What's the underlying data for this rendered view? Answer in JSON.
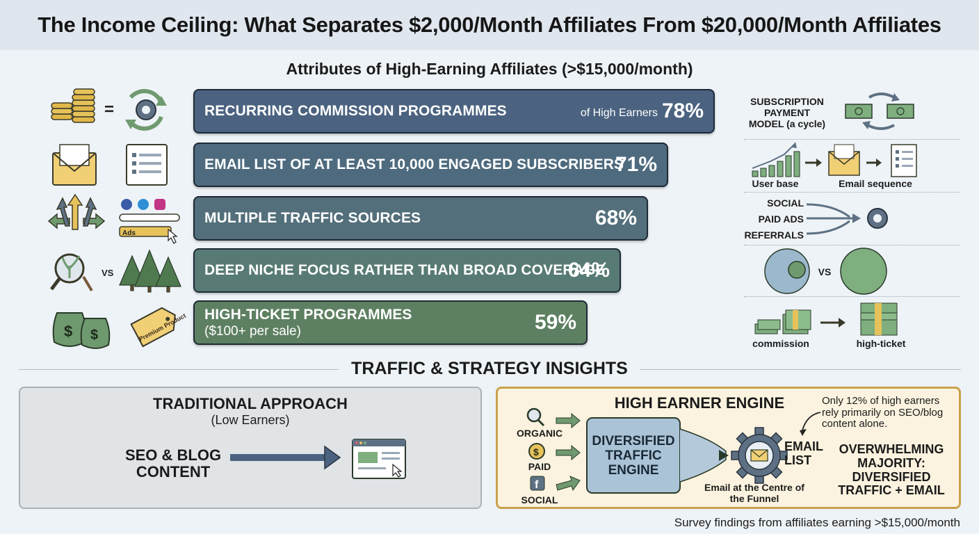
{
  "title": "The Income Ceiling: What Separates $2,000/Month Affiliates From $20,000/Month Affiliates",
  "subtitle": "Attributes of High-Earning Affiliates (>$15,000/month)",
  "chart_data": {
    "type": "bar",
    "categories": [
      "RECURRING COMMISSION PROGRAMMES",
      "EMAIL LIST OF AT LEAST 10,000 ENGAGED SUBSCRIBERS",
      "MULTIPLE TRAFFIC SOURCES",
      "DEEP NICHE FOCUS RATHER THAN BROAD COVERAGE",
      "HIGH-TICKET PROGRAMMES"
    ],
    "values": [
      78,
      71,
      68,
      64,
      59
    ],
    "value_labels": [
      "78%",
      "71%",
      "68%",
      "64%",
      "59%"
    ],
    "sublabels": [
      "",
      "",
      "",
      "",
      "($100+ per sale)"
    ],
    "first_note": "of High Earners",
    "colors": [
      "#4b6380",
      "#4e6a7e",
      "#536f7b",
      "#587a74",
      "#5e8062"
    ]
  },
  "right_col": {
    "subscription": "SUBSCRIPTION PAYMENT MODEL (a cycle)",
    "user_base": "User base",
    "email_sequence": "Email sequence",
    "social": "SOCIAL",
    "paid_ads": "PAID ADS",
    "referrals": "REFERRALS",
    "vs": "VS",
    "commission": "commission",
    "high_ticket": "high-ticket"
  },
  "left_icons": {
    "vs": "VS",
    "ads": "Ads",
    "tag": "Premium Product"
  },
  "section_title": "TRAFFIC & STRATEGY INSIGHTS",
  "traditional": {
    "title": "TRADITIONAL APPROACH",
    "subtitle": "(Low Earners)",
    "label": "SEO & BLOG CONTENT"
  },
  "engine": {
    "title": "HIGH EARNER ENGINE",
    "organic": "ORGANIC",
    "paid": "PAID",
    "social": "SOCIAL",
    "box": "DIVERSIFIED TRAFFIC ENGINE",
    "email_list": "EMAIL LIST",
    "funnel": "Email at the Centre of the Funnel",
    "note": "Only 12% of high earners rely primarily on SEO/blog content alone.",
    "conclusion": "OVERWHELMING MAJORITY: DIVERSIFIED TRAFFIC + EMAIL"
  },
  "footer": "Survey findings from affiliates earning >$15,000/month"
}
